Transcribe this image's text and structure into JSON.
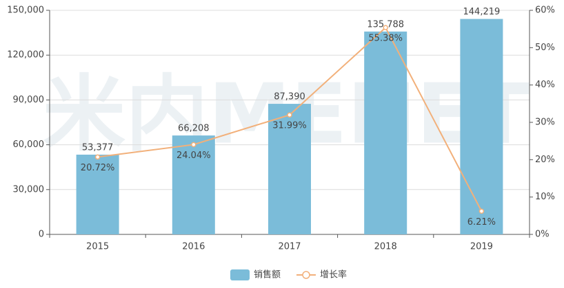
{
  "chart_data": {
    "type": "bar-line",
    "watermark": "米内MENET",
    "categories": [
      "2015",
      "2016",
      "2017",
      "2018",
      "2019"
    ],
    "series": [
      {
        "name": "销售额",
        "type": "bar",
        "color": "#7bbcd9",
        "values": [
          53377,
          66208,
          87390,
          135788,
          144219
        ],
        "value_labels": [
          "53,377",
          "66,208",
          "87,390",
          "135,788",
          "144,219"
        ]
      },
      {
        "name": "增长率",
        "type": "line",
        "axis": "y2",
        "color": "#f2b07a",
        "values": [
          20.72,
          24.04,
          31.99,
          55.38,
          6.21
        ],
        "value_labels": [
          "20.72%",
          "24.04%",
          "31.99%",
          "55.38%",
          "6.21%"
        ]
      }
    ],
    "ylim": [
      0,
      150000
    ],
    "yticks": [
      {
        "value": 0,
        "label": "0"
      },
      {
        "value": 30000,
        "label": "30,000"
      },
      {
        "value": 60000,
        "label": "60,000"
      },
      {
        "value": 90000,
        "label": "90,000"
      },
      {
        "value": 120000,
        "label": "120,000"
      },
      {
        "value": 150000,
        "label": "150,000"
      }
    ],
    "y2lim": [
      0,
      60
    ],
    "y2ticks": [
      {
        "value": 0,
        "label": "0%"
      },
      {
        "value": 10,
        "label": "10%"
      },
      {
        "value": 20,
        "label": "20%"
      },
      {
        "value": 30,
        "label": "30%"
      },
      {
        "value": 40,
        "label": "40%"
      },
      {
        "value": 50,
        "label": "50%"
      },
      {
        "value": 60,
        "label": "60%"
      }
    ],
    "grid": true,
    "legend": "bottom"
  }
}
